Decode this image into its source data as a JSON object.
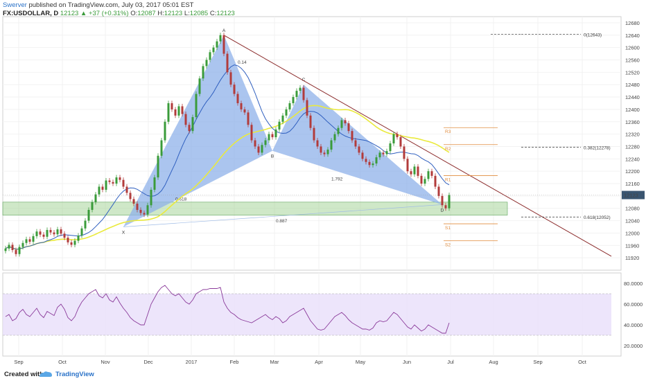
{
  "header": {
    "author": "Swerver",
    "published_text": "published on TradingView.com, July 03, 2017 05:01 EST",
    "symbol": "FX:USDOLLAR, D",
    "last": "12123",
    "change": "+37 (+0.31%)",
    "open_label": "O:",
    "open": "12087",
    "high_label": "H:",
    "high": "12123",
    "low_label": "L:",
    "low": "12085",
    "close_label": "C:",
    "close": "12123"
  },
  "footer": {
    "created": "Created with",
    "brand": "TradingView"
  },
  "colors": {
    "bull": "#3a9b3a",
    "bear": "#b23b3b",
    "ma_blue": "#2f5fbf",
    "ma_yellow": "#eaea3c",
    "pattern_fill": "#8fb2ea",
    "zone": "#a8d59a",
    "trend": "#8b2a2a",
    "rsi": "#8a3a9a",
    "rsi_band": "#e9defa",
    "pivot": "#e08b3c",
    "last_price_bg": "#3a5570"
  },
  "chart_data": {
    "type": "candlestick",
    "ylim": [
      11880,
      12700
    ],
    "y_ticks": [
      "12680",
      "12640",
      "12600",
      "12560",
      "12520",
      "12480",
      "12440",
      "12400",
      "12360",
      "12320",
      "12280",
      "12240",
      "12200",
      "12160",
      "12120",
      "12080",
      "12040",
      "12000",
      "11960",
      "11920"
    ],
    "last_price_tag": "12123",
    "x_labels": [
      "Sep",
      "Oct",
      "Nov",
      "Dec",
      "2017",
      "Feb",
      "Mar",
      "Apr",
      "May",
      "Jun",
      "Jul",
      "Aug",
      "Sep",
      "Oct"
    ],
    "closes": [
      11950,
      11962,
      11945,
      11932,
      11955,
      11968,
      11980,
      11972,
      11990,
      12005,
      11995,
      11988,
      12010,
      12002,
      11996,
      12012,
      11998,
      11985,
      11970,
      11962,
      11975,
      11992,
      12015,
      12040,
      12075,
      12100,
      12125,
      12150,
      12140,
      12170,
      12165,
      12160,
      12180,
      12172,
      12150,
      12130,
      12110,
      12095,
      12075,
      12065,
      12060,
      12090,
      12140,
      12180,
      12250,
      12300,
      12360,
      12420,
      12400,
      12380,
      12410,
      12385,
      12350,
      12330,
      12375,
      12450,
      12500,
      12540,
      12560,
      12585,
      12600,
      12620,
      12640,
      12580,
      12520,
      12480,
      12450,
      12420,
      12400,
      12390,
      12350,
      12300,
      12280,
      12260,
      12285,
      12300,
      12320,
      12310,
      12335,
      12360,
      12380,
      12400,
      12420,
      12440,
      12460,
      12470,
      12430,
      12380,
      12340,
      12300,
      12280,
      12260,
      12255,
      12270,
      12300,
      12320,
      12340,
      12365,
      12355,
      12330,
      12300,
      12280,
      12260,
      12240,
      12230,
      12220,
      12225,
      12245,
      12260,
      12255,
      12265,
      12290,
      12320,
      12310,
      12280,
      12240,
      12200,
      12190,
      12215,
      12185,
      12160,
      12175,
      12200,
      12185,
      12150,
      12120,
      12090,
      12080,
      12123
    ],
    "rsi": {
      "ylim": [
        10,
        90
      ],
      "y_ticks": [
        "80.0000",
        "60.0000",
        "40.0000",
        "20.0000"
      ],
      "band": [
        30,
        70
      ],
      "values": [
        48,
        50,
        44,
        46,
        52,
        55,
        50,
        48,
        52,
        56,
        50,
        47,
        53,
        51,
        49,
        57,
        60,
        55,
        47,
        44,
        48,
        56,
        62,
        66,
        70,
        72,
        74,
        68,
        66,
        70,
        64,
        62,
        67,
        61,
        56,
        52,
        47,
        44,
        42,
        40,
        40,
        50,
        60,
        66,
        72,
        76,
        78,
        74,
        70,
        68,
        70,
        66,
        62,
        60,
        64,
        70,
        72,
        74,
        74,
        75,
        75,
        75,
        76,
        62,
        56,
        52,
        50,
        47,
        45,
        44,
        43,
        42,
        44,
        46,
        48,
        50,
        47,
        45,
        48,
        46,
        42,
        44,
        48,
        50,
        52,
        54,
        56,
        50,
        44,
        40,
        36,
        35,
        36,
        40,
        44,
        48,
        50,
        52,
        49,
        45,
        42,
        40,
        38,
        36,
        36,
        35,
        37,
        42,
        44,
        43,
        44,
        48,
        52,
        50,
        46,
        42,
        38,
        36,
        40,
        37,
        34,
        36,
        40,
        38,
        36,
        34,
        32,
        32,
        42
      ]
    },
    "pattern": {
      "points": {
        "X": 12020,
        "A": 12640,
        "B": 12266,
        "C": 12480,
        "D": 12092
      },
      "labels": {
        "X": "X",
        "A": "A",
        "B": "B",
        "C": "C",
        "D": "D"
      },
      "ratios": {
        "ab": "0.618",
        "xd": "0.887",
        "bd": "1.792",
        "trend": "0.14"
      }
    },
    "fib_levels": [
      {
        "label": "0(12643)",
        "value": 12643
      },
      {
        "label": "0.382(12278)",
        "value": 12278
      },
      {
        "label": "0.618(12052)",
        "value": 12052
      }
    ],
    "pivots": [
      {
        "label": "R3",
        "value": 12341
      },
      {
        "label": "R2",
        "value": 12286
      },
      {
        "label": "R1",
        "value": 12186
      },
      {
        "label": "S1",
        "value": 12030
      },
      {
        "label": "S2",
        "value": 11975
      }
    ],
    "support_zone": [
      12058,
      12100
    ]
  }
}
